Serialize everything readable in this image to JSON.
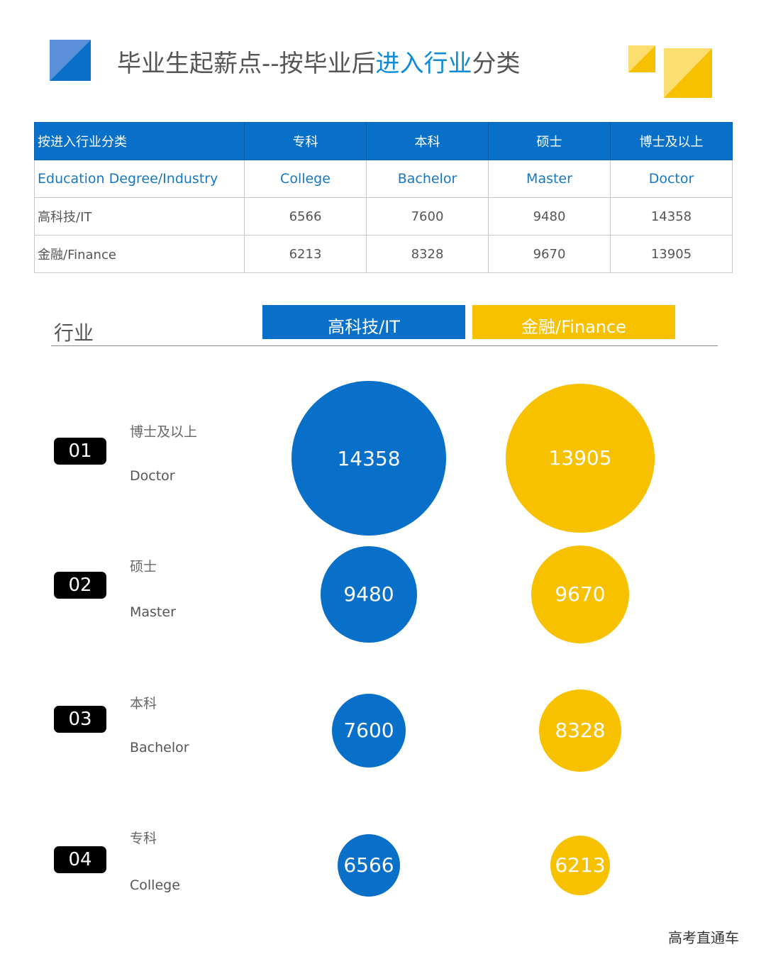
{
  "header": {
    "title_part1": "毕业生起薪点--按毕业后",
    "title_highlight": "进入行业",
    "title_part2": "分类",
    "accent_blue": "#0870C8",
    "accent_yellow": "#F7C100",
    "highlight_color": "#0E8BD6"
  },
  "table": {
    "header": [
      "按进入行业分类",
      "专科",
      "本科",
      "硕士",
      "博士及以上"
    ],
    "subheader": [
      "Education Degree/Industry",
      "College",
      "Bachelor",
      "Master",
      "Doctor"
    ],
    "rows": [
      [
        "高科技/IT",
        "6566",
        "7600",
        "9480",
        "14358"
      ],
      [
        "金融/Finance",
        "6213",
        "8328",
        "9670",
        "13905"
      ]
    ]
  },
  "legend": {
    "axis_label": "行业",
    "it_label": "高科技/IT",
    "finance_label": "金融/Finance"
  },
  "rows": [
    {
      "num": "01",
      "cn": "博士及以上",
      "en": "Doctor"
    },
    {
      "num": "02",
      "cn": "硕士",
      "en": "Master"
    },
    {
      "num": "03",
      "cn": "本科",
      "en": "Bachelor"
    },
    {
      "num": "04",
      "cn": "专科",
      "en": "College"
    }
  ],
  "chart_data": {
    "type": "bubble",
    "categories": [
      "博士及以上 Doctor",
      "硕士 Master",
      "本科 Bachelor",
      "专科 College"
    ],
    "series": [
      {
        "name": "高科技/IT",
        "color": "#0870C8",
        "values": [
          14358,
          9480,
          7600,
          6566
        ]
      },
      {
        "name": "金融/Finance",
        "color": "#F7C100",
        "values": [
          13905,
          9670,
          8328,
          6213
        ]
      }
    ]
  },
  "watermark": "高考直通车"
}
